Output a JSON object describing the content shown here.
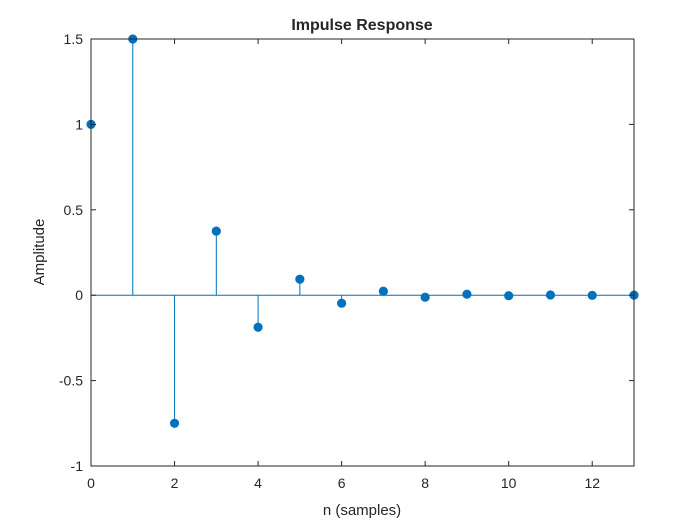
{
  "chart_data": {
    "type": "stem",
    "title": "Impulse Response",
    "xlabel": "n (samples)",
    "ylabel": "Amplitude",
    "xlim": [
      0,
      13
    ],
    "ylim": [
      -1,
      1.5
    ],
    "xticks": [
      0,
      2,
      4,
      6,
      8,
      10,
      12
    ],
    "xtick_labels": [
      "0",
      "2",
      "4",
      "6",
      "8",
      "10",
      "12"
    ],
    "yticks": [
      -1,
      -0.5,
      0,
      0.5,
      1,
      1.5
    ],
    "ytick_labels": [
      "-1",
      "-0.5",
      "0",
      "0.5",
      "1",
      "1.5"
    ],
    "grid": false,
    "box": true,
    "series": [
      {
        "color": "#0072BD",
        "x": [
          0,
          1,
          2,
          3,
          4,
          5,
          6,
          7,
          8,
          9,
          10,
          11,
          12,
          13
        ],
        "y": [
          1.0,
          1.5,
          -0.75,
          0.375,
          -0.1875,
          0.09375,
          -0.046875,
          0.0234375,
          -0.01171875,
          0.005859375,
          -0.0029296875,
          0.00146484375,
          -0.000732421875,
          0.0003662109375
        ]
      }
    ]
  }
}
